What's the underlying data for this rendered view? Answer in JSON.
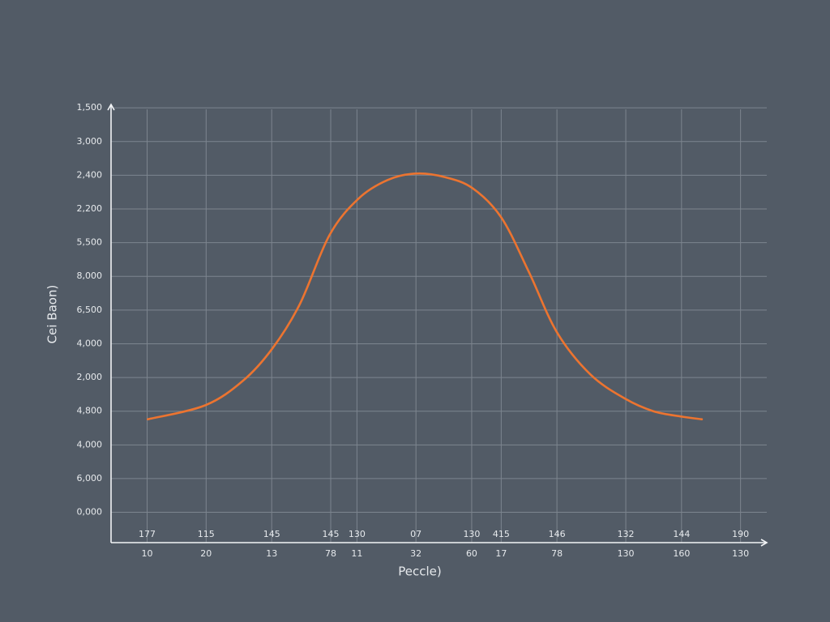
{
  "chart_data": {
    "type": "line",
    "x_label": "Peccle)",
    "y_label": "Cei Baon)",
    "xlim": [
      0,
      100
    ],
    "ylim": [
      -0.9,
      12.1
    ],
    "grid": true,
    "xticks": [
      {
        "value": 5.5,
        "label": "177"
      },
      {
        "value": 14.5,
        "label": "115"
      },
      {
        "value": 24.5,
        "label": "145"
      },
      {
        "value": 33.5,
        "label": "145"
      },
      {
        "value": 37.5,
        "label": "130"
      },
      {
        "value": 46.5,
        "label": "07"
      },
      {
        "value": 55,
        "label": "130"
      },
      {
        "value": 59.5,
        "label": "415"
      },
      {
        "value": 68,
        "label": "146"
      },
      {
        "value": 78.5,
        "label": "132"
      },
      {
        "value": 87,
        "label": "144"
      },
      {
        "value": 96,
        "label": "190"
      }
    ],
    "x_sublabels": [
      "10",
      "20",
      "13",
      "78",
      "11",
      "32",
      "60",
      "17",
      "78",
      "130",
      "160",
      "130"
    ],
    "yticks": [
      {
        "value": 0,
        "label": "0,000"
      },
      {
        "value": 1,
        "label": "6,000"
      },
      {
        "value": 2,
        "label": "4,000"
      },
      {
        "value": 3,
        "label": "4,800"
      },
      {
        "value": 4,
        "label": "2,000"
      },
      {
        "value": 5,
        "label": "4,000"
      },
      {
        "value": 6,
        "label": "6,500"
      },
      {
        "value": 7,
        "label": "8,000"
      },
      {
        "value": 8,
        "label": "5,500"
      },
      {
        "value": 9,
        "label": "2,200"
      },
      {
        "value": 10,
        "label": "2,400"
      },
      {
        "value": 11,
        "label": "3,000"
      },
      {
        "value": 12,
        "label": "1,500"
      }
    ],
    "series": [
      {
        "color": "#ec7430",
        "x": [
          5.6,
          14.3,
          20.1,
          24.6,
          28.8,
          33.3,
          37.7,
          42.2,
          46.5,
          50.8,
          55.1,
          59.5,
          63.7,
          68.0,
          73.1,
          78.4,
          82.7,
          87.0,
          90.1
        ],
        "values": [
          2.76,
          3.17,
          3.9,
          4.86,
          6.18,
          8.22,
          9.3,
          9.86,
          10.05,
          9.95,
          9.62,
          8.75,
          7.14,
          5.34,
          4.09,
          3.37,
          3.0,
          2.84,
          2.76
        ]
      }
    ]
  }
}
